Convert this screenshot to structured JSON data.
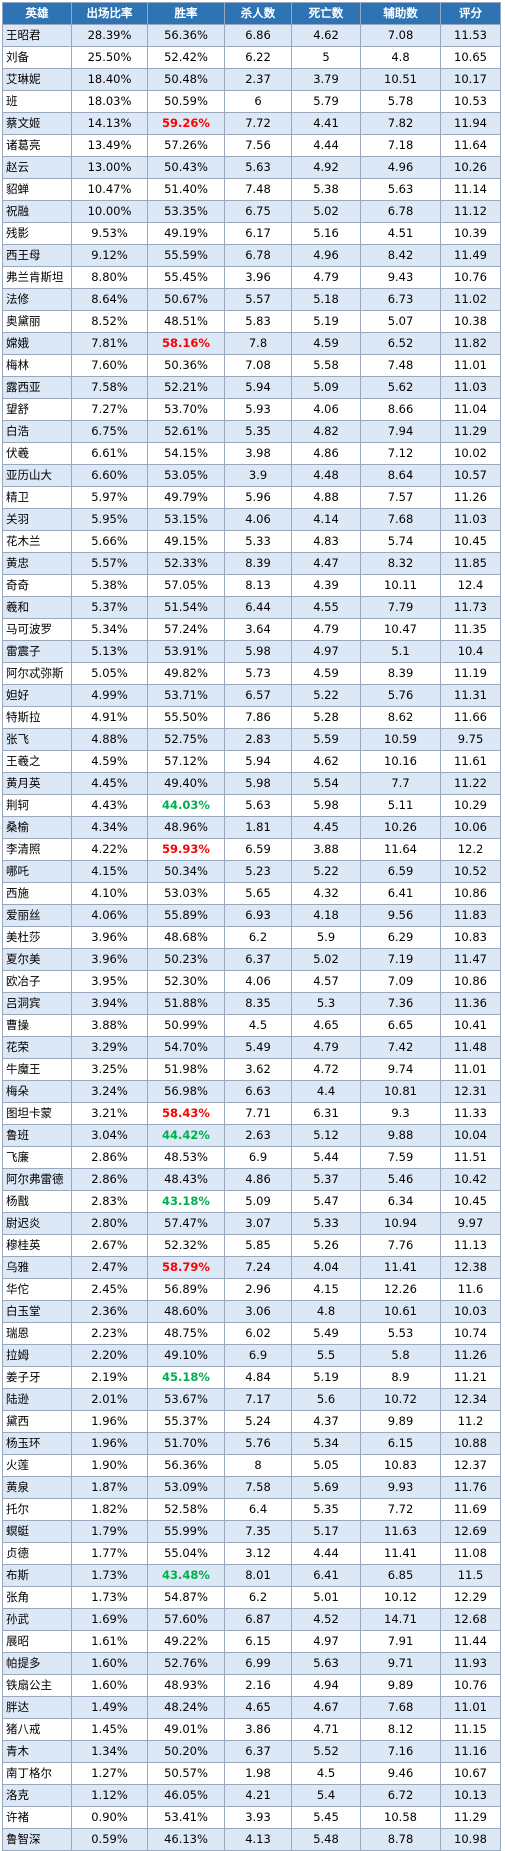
{
  "table": {
    "headers": [
      "英雄",
      "出场比率",
      "胜率",
      "杀人数",
      "死亡数",
      "辅助数",
      "评分"
    ],
    "highlight_colors": {
      "red": "#ff0000",
      "green": "#00b050"
    },
    "rows": [
      {
        "name": "王昭君",
        "pick_rate": "28.39%",
        "win_rate": "56.36%",
        "kills": "6.86",
        "deaths": "4.62",
        "assists": "7.08",
        "score": "11.53",
        "highlight": ""
      },
      {
        "name": "刘备",
        "pick_rate": "25.50%",
        "win_rate": "52.42%",
        "kills": "6.22",
        "deaths": "5",
        "assists": "4.8",
        "score": "10.65",
        "highlight": ""
      },
      {
        "name": "艾琳妮",
        "pick_rate": "18.40%",
        "win_rate": "50.48%",
        "kills": "2.37",
        "deaths": "3.79",
        "assists": "10.51",
        "score": "10.17",
        "highlight": ""
      },
      {
        "name": "班",
        "pick_rate": "18.03%",
        "win_rate": "50.59%",
        "kills": "6",
        "deaths": "5.79",
        "assists": "5.78",
        "score": "10.53",
        "highlight": ""
      },
      {
        "name": "蔡文姬",
        "pick_rate": "14.13%",
        "win_rate": "59.26%",
        "kills": "7.72",
        "deaths": "4.41",
        "assists": "7.82",
        "score": "11.94",
        "highlight": "red"
      },
      {
        "name": "诸葛亮",
        "pick_rate": "13.49%",
        "win_rate": "57.26%",
        "kills": "7.56",
        "deaths": "4.44",
        "assists": "7.18",
        "score": "11.64",
        "highlight": ""
      },
      {
        "name": "赵云",
        "pick_rate": "13.00%",
        "win_rate": "50.43%",
        "kills": "5.63",
        "deaths": "4.92",
        "assists": "4.96",
        "score": "10.26",
        "highlight": ""
      },
      {
        "name": "貂蝉",
        "pick_rate": "10.47%",
        "win_rate": "51.40%",
        "kills": "7.48",
        "deaths": "5.38",
        "assists": "5.63",
        "score": "11.14",
        "highlight": ""
      },
      {
        "name": "祝融",
        "pick_rate": "10.00%",
        "win_rate": "53.35%",
        "kills": "6.75",
        "deaths": "5.02",
        "assists": "6.78",
        "score": "11.12",
        "highlight": ""
      },
      {
        "name": "残影",
        "pick_rate": "9.53%",
        "win_rate": "49.19%",
        "kills": "6.17",
        "deaths": "5.16",
        "assists": "4.51",
        "score": "10.39",
        "highlight": ""
      },
      {
        "name": "西王母",
        "pick_rate": "9.12%",
        "win_rate": "55.59%",
        "kills": "6.78",
        "deaths": "4.96",
        "assists": "8.42",
        "score": "11.49",
        "highlight": ""
      },
      {
        "name": "弗兰肯斯坦",
        "pick_rate": "8.80%",
        "win_rate": "55.45%",
        "kills": "3.96",
        "deaths": "4.79",
        "assists": "9.43",
        "score": "10.76",
        "highlight": ""
      },
      {
        "name": "法修",
        "pick_rate": "8.64%",
        "win_rate": "50.67%",
        "kills": "5.57",
        "deaths": "5.18",
        "assists": "6.73",
        "score": "11.02",
        "highlight": ""
      },
      {
        "name": "奥黛丽",
        "pick_rate": "8.52%",
        "win_rate": "48.51%",
        "kills": "5.83",
        "deaths": "5.19",
        "assists": "5.07",
        "score": "10.38",
        "highlight": ""
      },
      {
        "name": "嫦娥",
        "pick_rate": "7.81%",
        "win_rate": "58.16%",
        "kills": "7.8",
        "deaths": "4.59",
        "assists": "6.52",
        "score": "11.82",
        "highlight": "red"
      },
      {
        "name": "梅林",
        "pick_rate": "7.60%",
        "win_rate": "50.36%",
        "kills": "7.08",
        "deaths": "5.58",
        "assists": "7.48",
        "score": "11.01",
        "highlight": ""
      },
      {
        "name": "露西亚",
        "pick_rate": "7.58%",
        "win_rate": "52.21%",
        "kills": "5.94",
        "deaths": "5.09",
        "assists": "5.62",
        "score": "11.03",
        "highlight": ""
      },
      {
        "name": "望舒",
        "pick_rate": "7.27%",
        "win_rate": "53.70%",
        "kills": "5.93",
        "deaths": "4.06",
        "assists": "8.66",
        "score": "11.04",
        "highlight": ""
      },
      {
        "name": "白浩",
        "pick_rate": "6.75%",
        "win_rate": "52.61%",
        "kills": "5.35",
        "deaths": "4.82",
        "assists": "7.94",
        "score": "11.29",
        "highlight": ""
      },
      {
        "name": "伏羲",
        "pick_rate": "6.61%",
        "win_rate": "54.15%",
        "kills": "3.98",
        "deaths": "4.86",
        "assists": "7.12",
        "score": "10.02",
        "highlight": ""
      },
      {
        "name": "亚历山大",
        "pick_rate": "6.60%",
        "win_rate": "53.05%",
        "kills": "3.9",
        "deaths": "4.48",
        "assists": "8.64",
        "score": "10.57",
        "highlight": ""
      },
      {
        "name": "精卫",
        "pick_rate": "5.97%",
        "win_rate": "49.79%",
        "kills": "5.96",
        "deaths": "4.88",
        "assists": "7.57",
        "score": "11.26",
        "highlight": ""
      },
      {
        "name": "关羽",
        "pick_rate": "5.95%",
        "win_rate": "53.15%",
        "kills": "4.06",
        "deaths": "4.14",
        "assists": "7.68",
        "score": "11.03",
        "highlight": ""
      },
      {
        "name": "花木兰",
        "pick_rate": "5.66%",
        "win_rate": "49.15%",
        "kills": "5.33",
        "deaths": "4.83",
        "assists": "5.74",
        "score": "10.45",
        "highlight": ""
      },
      {
        "name": "黄忠",
        "pick_rate": "5.57%",
        "win_rate": "52.33%",
        "kills": "8.39",
        "deaths": "4.47",
        "assists": "8.32",
        "score": "11.85",
        "highlight": ""
      },
      {
        "name": "奇奇",
        "pick_rate": "5.38%",
        "win_rate": "57.05%",
        "kills": "8.13",
        "deaths": "4.39",
        "assists": "10.11",
        "score": "12.4",
        "highlight": ""
      },
      {
        "name": "羲和",
        "pick_rate": "5.37%",
        "win_rate": "51.54%",
        "kills": "6.44",
        "deaths": "4.55",
        "assists": "7.79",
        "score": "11.73",
        "highlight": ""
      },
      {
        "name": "马可波罗",
        "pick_rate": "5.34%",
        "win_rate": "57.24%",
        "kills": "3.64",
        "deaths": "4.79",
        "assists": "10.47",
        "score": "11.35",
        "highlight": ""
      },
      {
        "name": "雷震子",
        "pick_rate": "5.13%",
        "win_rate": "53.91%",
        "kills": "5.98",
        "deaths": "4.97",
        "assists": "5.1",
        "score": "10.4",
        "highlight": ""
      },
      {
        "name": "阿尔忒弥斯",
        "pick_rate": "5.05%",
        "win_rate": "49.82%",
        "kills": "5.73",
        "deaths": "4.59",
        "assists": "8.39",
        "score": "11.19",
        "highlight": ""
      },
      {
        "name": "妲好",
        "pick_rate": "4.99%",
        "win_rate": "53.71%",
        "kills": "6.57",
        "deaths": "5.22",
        "assists": "5.76",
        "score": "11.31",
        "highlight": ""
      },
      {
        "name": "特斯拉",
        "pick_rate": "4.91%",
        "win_rate": "55.50%",
        "kills": "7.86",
        "deaths": "5.28",
        "assists": "8.62",
        "score": "11.66",
        "highlight": ""
      },
      {
        "name": "张飞",
        "pick_rate": "4.88%",
        "win_rate": "52.75%",
        "kills": "2.83",
        "deaths": "5.59",
        "assists": "10.59",
        "score": "9.75",
        "highlight": ""
      },
      {
        "name": "王羲之",
        "pick_rate": "4.59%",
        "win_rate": "57.12%",
        "kills": "5.94",
        "deaths": "4.62",
        "assists": "10.16",
        "score": "11.61",
        "highlight": ""
      },
      {
        "name": "黄月英",
        "pick_rate": "4.45%",
        "win_rate": "49.40%",
        "kills": "5.98",
        "deaths": "5.54",
        "assists": "7.7",
        "score": "11.22",
        "highlight": ""
      },
      {
        "name": "荆轲",
        "pick_rate": "4.43%",
        "win_rate": "44.03%",
        "kills": "5.63",
        "deaths": "5.98",
        "assists": "5.11",
        "score": "10.29",
        "highlight": "green"
      },
      {
        "name": "桑榆",
        "pick_rate": "4.34%",
        "win_rate": "48.96%",
        "kills": "1.81",
        "deaths": "4.45",
        "assists": "10.26",
        "score": "10.06",
        "highlight": ""
      },
      {
        "name": "李清照",
        "pick_rate": "4.22%",
        "win_rate": "59.93%",
        "kills": "6.59",
        "deaths": "3.88",
        "assists": "11.64",
        "score": "12.2",
        "highlight": "red"
      },
      {
        "name": "哪吒",
        "pick_rate": "4.15%",
        "win_rate": "50.34%",
        "kills": "5.23",
        "deaths": "5.22",
        "assists": "6.59",
        "score": "10.52",
        "highlight": ""
      },
      {
        "name": "西施",
        "pick_rate": "4.10%",
        "win_rate": "53.03%",
        "kills": "5.65",
        "deaths": "4.32",
        "assists": "6.41",
        "score": "10.86",
        "highlight": ""
      },
      {
        "name": "爱丽丝",
        "pick_rate": "4.06%",
        "win_rate": "55.89%",
        "kills": "6.93",
        "deaths": "4.18",
        "assists": "9.56",
        "score": "11.83",
        "highlight": ""
      },
      {
        "name": "美杜莎",
        "pick_rate": "3.96%",
        "win_rate": "48.68%",
        "kills": "6.2",
        "deaths": "5.9",
        "assists": "6.29",
        "score": "10.83",
        "highlight": ""
      },
      {
        "name": "夏尔美",
        "pick_rate": "3.96%",
        "win_rate": "50.23%",
        "kills": "6.37",
        "deaths": "5.02",
        "assists": "7.19",
        "score": "11.47",
        "highlight": ""
      },
      {
        "name": "欧冶子",
        "pick_rate": "3.95%",
        "win_rate": "52.30%",
        "kills": "4.06",
        "deaths": "4.57",
        "assists": "7.09",
        "score": "10.86",
        "highlight": ""
      },
      {
        "name": "吕洞宾",
        "pick_rate": "3.94%",
        "win_rate": "51.88%",
        "kills": "8.35",
        "deaths": "5.3",
        "assists": "7.36",
        "score": "11.36",
        "highlight": ""
      },
      {
        "name": "曹操",
        "pick_rate": "3.88%",
        "win_rate": "50.99%",
        "kills": "4.5",
        "deaths": "4.65",
        "assists": "6.65",
        "score": "10.41",
        "highlight": ""
      },
      {
        "name": "花荣",
        "pick_rate": "3.29%",
        "win_rate": "54.70%",
        "kills": "5.49",
        "deaths": "4.79",
        "assists": "7.42",
        "score": "11.48",
        "highlight": ""
      },
      {
        "name": "牛魔王",
        "pick_rate": "3.25%",
        "win_rate": "51.98%",
        "kills": "3.62",
        "deaths": "4.72",
        "assists": "9.74",
        "score": "11.01",
        "highlight": ""
      },
      {
        "name": "梅朵",
        "pick_rate": "3.24%",
        "win_rate": "56.98%",
        "kills": "6.63",
        "deaths": "4.4",
        "assists": "10.81",
        "score": "12.31",
        "highlight": ""
      },
      {
        "name": "图坦卡蒙",
        "pick_rate": "3.21%",
        "win_rate": "58.43%",
        "kills": "7.71",
        "deaths": "6.31",
        "assists": "9.3",
        "score": "11.33",
        "highlight": "red"
      },
      {
        "name": "鲁班",
        "pick_rate": "3.04%",
        "win_rate": "44.42%",
        "kills": "2.63",
        "deaths": "5.12",
        "assists": "9.88",
        "score": "10.04",
        "highlight": "green"
      },
      {
        "name": "飞廉",
        "pick_rate": "2.86%",
        "win_rate": "48.53%",
        "kills": "6.9",
        "deaths": "5.44",
        "assists": "7.59",
        "score": "11.51",
        "highlight": ""
      },
      {
        "name": "阿尔弗雷德",
        "pick_rate": "2.86%",
        "win_rate": "48.43%",
        "kills": "4.86",
        "deaths": "5.37",
        "assists": "5.46",
        "score": "10.42",
        "highlight": ""
      },
      {
        "name": "杨戬",
        "pick_rate": "2.83%",
        "win_rate": "43.18%",
        "kills": "5.09",
        "deaths": "5.47",
        "assists": "6.34",
        "score": "10.45",
        "highlight": "green"
      },
      {
        "name": "尉迟炎",
        "pick_rate": "2.80%",
        "win_rate": "57.47%",
        "kills": "3.07",
        "deaths": "5.33",
        "assists": "10.94",
        "score": "9.97",
        "highlight": ""
      },
      {
        "name": "穆桂英",
        "pick_rate": "2.67%",
        "win_rate": "52.32%",
        "kills": "5.85",
        "deaths": "5.26",
        "assists": "7.76",
        "score": "11.13",
        "highlight": ""
      },
      {
        "name": "乌雅",
        "pick_rate": "2.47%",
        "win_rate": "58.79%",
        "kills": "7.24",
        "deaths": "4.04",
        "assists": "11.41",
        "score": "12.38",
        "highlight": "red"
      },
      {
        "name": "华佗",
        "pick_rate": "2.45%",
        "win_rate": "56.89%",
        "kills": "2.96",
        "deaths": "4.15",
        "assists": "12.26",
        "score": "11.6",
        "highlight": ""
      },
      {
        "name": "白玉堂",
        "pick_rate": "2.36%",
        "win_rate": "48.60%",
        "kills": "3.06",
        "deaths": "4.8",
        "assists": "10.61",
        "score": "10.03",
        "highlight": ""
      },
      {
        "name": "瑞恩",
        "pick_rate": "2.23%",
        "win_rate": "48.75%",
        "kills": "6.02",
        "deaths": "5.49",
        "assists": "5.53",
        "score": "10.74",
        "highlight": ""
      },
      {
        "name": "拉姆",
        "pick_rate": "2.20%",
        "win_rate": "49.10%",
        "kills": "6.9",
        "deaths": "5.5",
        "assists": "5.8",
        "score": "11.26",
        "highlight": ""
      },
      {
        "name": "姜子牙",
        "pick_rate": "2.19%",
        "win_rate": "45.18%",
        "kills": "4.84",
        "deaths": "5.19",
        "assists": "8.9",
        "score": "11.21",
        "highlight": "green"
      },
      {
        "name": "陆逊",
        "pick_rate": "2.01%",
        "win_rate": "53.67%",
        "kills": "7.17",
        "deaths": "5.6",
        "assists": "10.72",
        "score": "12.34",
        "highlight": ""
      },
      {
        "name": "黛西",
        "pick_rate": "1.96%",
        "win_rate": "55.37%",
        "kills": "5.24",
        "deaths": "4.37",
        "assists": "9.89",
        "score": "11.2",
        "highlight": ""
      },
      {
        "name": "杨玉环",
        "pick_rate": "1.96%",
        "win_rate": "51.70%",
        "kills": "5.76",
        "deaths": "5.34",
        "assists": "6.15",
        "score": "10.88",
        "highlight": ""
      },
      {
        "name": "火莲",
        "pick_rate": "1.90%",
        "win_rate": "56.36%",
        "kills": "8",
        "deaths": "5.05",
        "assists": "10.83",
        "score": "12.37",
        "highlight": ""
      },
      {
        "name": "黄泉",
        "pick_rate": "1.87%",
        "win_rate": "53.09%",
        "kills": "7.58",
        "deaths": "5.69",
        "assists": "9.93",
        "score": "11.76",
        "highlight": ""
      },
      {
        "name": "托尔",
        "pick_rate": "1.82%",
        "win_rate": "52.58%",
        "kills": "6.4",
        "deaths": "5.35",
        "assists": "7.72",
        "score": "11.69",
        "highlight": ""
      },
      {
        "name": "螟蜓",
        "pick_rate": "1.79%",
        "win_rate": "55.99%",
        "kills": "7.35",
        "deaths": "5.17",
        "assists": "11.63",
        "score": "12.69",
        "highlight": ""
      },
      {
        "name": "贞德",
        "pick_rate": "1.77%",
        "win_rate": "55.04%",
        "kills": "3.12",
        "deaths": "4.44",
        "assists": "11.41",
        "score": "11.08",
        "highlight": ""
      },
      {
        "name": "布斯",
        "pick_rate": "1.73%",
        "win_rate": "43.48%",
        "kills": "8.01",
        "deaths": "6.41",
        "assists": "6.85",
        "score": "11.5",
        "highlight": "green"
      },
      {
        "name": "张角",
        "pick_rate": "1.73%",
        "win_rate": "54.87%",
        "kills": "6.2",
        "deaths": "5.01",
        "assists": "10.12",
        "score": "12.29",
        "highlight": ""
      },
      {
        "name": "孙武",
        "pick_rate": "1.69%",
        "win_rate": "57.60%",
        "kills": "6.87",
        "deaths": "4.52",
        "assists": "14.71",
        "score": "12.68",
        "highlight": ""
      },
      {
        "name": "展昭",
        "pick_rate": "1.61%",
        "win_rate": "49.22%",
        "kills": "6.15",
        "deaths": "4.97",
        "assists": "7.91",
        "score": "11.44",
        "highlight": ""
      },
      {
        "name": "帕提多",
        "pick_rate": "1.60%",
        "win_rate": "52.76%",
        "kills": "6.99",
        "deaths": "5.63",
        "assists": "9.71",
        "score": "11.93",
        "highlight": ""
      },
      {
        "name": "铁扇公主",
        "pick_rate": "1.60%",
        "win_rate": "48.93%",
        "kills": "2.16",
        "deaths": "4.94",
        "assists": "9.89",
        "score": "10.76",
        "highlight": ""
      },
      {
        "name": "胖达",
        "pick_rate": "1.49%",
        "win_rate": "48.24%",
        "kills": "4.65",
        "deaths": "4.67",
        "assists": "7.68",
        "score": "11.01",
        "highlight": ""
      },
      {
        "name": "猪八戒",
        "pick_rate": "1.45%",
        "win_rate": "49.01%",
        "kills": "3.86",
        "deaths": "4.71",
        "assists": "8.12",
        "score": "11.15",
        "highlight": ""
      },
      {
        "name": "青木",
        "pick_rate": "1.34%",
        "win_rate": "50.20%",
        "kills": "6.37",
        "deaths": "5.52",
        "assists": "7.16",
        "score": "11.16",
        "highlight": ""
      },
      {
        "name": "南丁格尔",
        "pick_rate": "1.27%",
        "win_rate": "50.57%",
        "kills": "1.98",
        "deaths": "4.5",
        "assists": "9.46",
        "score": "10.67",
        "highlight": ""
      },
      {
        "name": "洛克",
        "pick_rate": "1.12%",
        "win_rate": "46.05%",
        "kills": "4.21",
        "deaths": "5.4",
        "assists": "6.72",
        "score": "10.13",
        "highlight": ""
      },
      {
        "name": "许褚",
        "pick_rate": "0.90%",
        "win_rate": "53.41%",
        "kills": "3.93",
        "deaths": "5.45",
        "assists": "10.58",
        "score": "11.29",
        "highlight": ""
      },
      {
        "name": "鲁智深",
        "pick_rate": "0.59%",
        "win_rate": "46.13%",
        "kills": "4.13",
        "deaths": "5.48",
        "assists": "8.78",
        "score": "10.98",
        "highlight": ""
      }
    ]
  }
}
